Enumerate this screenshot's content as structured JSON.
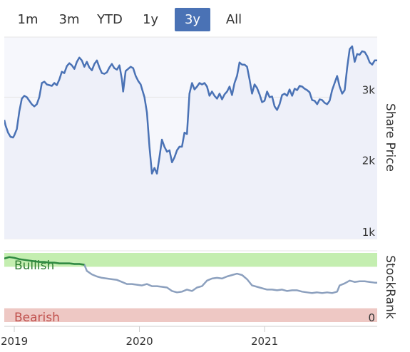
{
  "range_selector": {
    "buttons": [
      {
        "label": "1m",
        "active": false
      },
      {
        "label": "3m",
        "active": false
      },
      {
        "label": "YTD",
        "active": false
      },
      {
        "label": "1y",
        "active": false
      },
      {
        "label": "3y",
        "active": true
      },
      {
        "label": "All",
        "active": false
      }
    ],
    "active_color": "#4a72b5"
  },
  "colors": {
    "price_line": "#4a72b5",
    "rank_line": "#8ca0be",
    "rank_bull_line": "#2e8b3e",
    "bullish_band": "#c4eeb0",
    "bearish_band": "#eec8c4",
    "bullish_text": "#2e7d32",
    "bearish_text": "#c0504d",
    "plot_bg": "#f6f7fc",
    "gridline": "#e6e6e6"
  },
  "chart_data": [
    {
      "type": "line",
      "ylabel": "Share Price",
      "ylim": [
        1000,
        3850
      ],
      "y_ticks": [
        {
          "value": 1000,
          "label": "1k"
        },
        {
          "value": 2000,
          "label": "2k"
        },
        {
          "value": 3000,
          "label": "3k"
        }
      ],
      "x_ticks": [
        "2019",
        "2020",
        "2021"
      ],
      "grid": true,
      "series": [
        {
          "values": [
            [
              2018.92,
              2680
            ],
            [
              2018.93,
              2600
            ],
            [
              2018.95,
              2500
            ],
            [
              2018.97,
              2440
            ],
            [
              2018.99,
              2430
            ],
            [
              2019.0,
              2460
            ],
            [
              2019.02,
              2550
            ],
            [
              2019.04,
              2800
            ],
            [
              2019.06,
              2980
            ],
            [
              2019.08,
              3020
            ],
            [
              2019.1,
              3000
            ],
            [
              2019.12,
              2950
            ],
            [
              2019.14,
              2900
            ],
            [
              2019.16,
              2870
            ],
            [
              2019.18,
              2900
            ],
            [
              2019.2,
              3000
            ],
            [
              2019.22,
              3200
            ],
            [
              2019.24,
              3220
            ],
            [
              2019.26,
              3180
            ],
            [
              2019.28,
              3170
            ],
            [
              2019.3,
              3160
            ],
            [
              2019.32,
              3200
            ],
            [
              2019.34,
              3170
            ],
            [
              2019.36,
              3250
            ],
            [
              2019.38,
              3360
            ],
            [
              2019.4,
              3340
            ],
            [
              2019.42,
              3440
            ],
            [
              2019.44,
              3480
            ],
            [
              2019.46,
              3450
            ],
            [
              2019.48,
              3400
            ],
            [
              2019.5,
              3500
            ],
            [
              2019.52,
              3560
            ],
            [
              2019.54,
              3520
            ],
            [
              2019.56,
              3430
            ],
            [
              2019.58,
              3500
            ],
            [
              2019.6,
              3420
            ],
            [
              2019.62,
              3380
            ],
            [
              2019.64,
              3470
            ],
            [
              2019.66,
              3520
            ],
            [
              2019.68,
              3420
            ],
            [
              2019.7,
              3340
            ],
            [
              2019.72,
              3330
            ],
            [
              2019.74,
              3350
            ],
            [
              2019.76,
              3420
            ],
            [
              2019.78,
              3470
            ],
            [
              2019.8,
              3410
            ],
            [
              2019.82,
              3390
            ],
            [
              2019.84,
              3450
            ],
            [
              2019.86,
              3250
            ],
            [
              2019.87,
              3080
            ],
            [
              2019.89,
              3370
            ],
            [
              2019.91,
              3400
            ],
            [
              2019.93,
              3430
            ],
            [
              2019.95,
              3410
            ],
            [
              2019.97,
              3300
            ],
            [
              2019.99,
              3230
            ],
            [
              2020.01,
              3180
            ],
            [
              2020.04,
              3000
            ],
            [
              2020.06,
              2780
            ],
            [
              2020.08,
              2300
            ],
            [
              2020.1,
              1920
            ],
            [
              2020.12,
              2000
            ],
            [
              2020.14,
              1920
            ],
            [
              2020.16,
              2150
            ],
            [
              2020.18,
              2400
            ],
            [
              2020.2,
              2300
            ],
            [
              2020.22,
              2230
            ],
            [
              2020.24,
              2250
            ],
            [
              2020.26,
              2080
            ],
            [
              2020.28,
              2150
            ],
            [
              2020.3,
              2250
            ],
            [
              2020.32,
              2300
            ],
            [
              2020.34,
              2300
            ],
            [
              2020.36,
              2500
            ],
            [
              2020.38,
              2480
            ],
            [
              2020.4,
              3050
            ],
            [
              2020.42,
              3200
            ],
            [
              2020.44,
              3110
            ],
            [
              2020.46,
              3150
            ],
            [
              2020.48,
              3200
            ],
            [
              2020.5,
              3180
            ],
            [
              2020.52,
              3200
            ],
            [
              2020.54,
              3150
            ],
            [
              2020.56,
              3020
            ],
            [
              2020.58,
              3080
            ],
            [
              2020.6,
              3020
            ],
            [
              2020.62,
              2980
            ],
            [
              2020.64,
              3050
            ],
            [
              2020.66,
              2970
            ],
            [
              2020.68,
              3040
            ],
            [
              2020.7,
              3080
            ],
            [
              2020.72,
              3150
            ],
            [
              2020.74,
              3030
            ],
            [
              2020.76,
              3200
            ],
            [
              2020.78,
              3300
            ],
            [
              2020.8,
              3490
            ],
            [
              2020.82,
              3460
            ],
            [
              2020.84,
              3460
            ],
            [
              2020.86,
              3430
            ],
            [
              2020.88,
              3250
            ],
            [
              2020.9,
              3050
            ],
            [
              2020.92,
              3180
            ],
            [
              2020.94,
              3130
            ],
            [
              2020.96,
              3040
            ],
            [
              2020.98,
              2930
            ],
            [
              2021.0,
              2950
            ],
            [
              2021.02,
              3080
            ],
            [
              2021.04,
              3000
            ],
            [
              2021.06,
              3010
            ],
            [
              2021.08,
              2870
            ],
            [
              2021.1,
              2820
            ],
            [
              2021.12,
              2900
            ],
            [
              2021.14,
              3030
            ],
            [
              2021.16,
              3050
            ],
            [
              2021.18,
              3020
            ],
            [
              2021.2,
              3110
            ],
            [
              2021.22,
              3020
            ],
            [
              2021.24,
              3120
            ],
            [
              2021.26,
              3100
            ],
            [
              2021.28,
              3160
            ],
            [
              2021.3,
              3150
            ],
            [
              2021.32,
              3120
            ],
            [
              2021.34,
              3100
            ],
            [
              2021.36,
              3070
            ],
            [
              2021.38,
              2960
            ],
            [
              2021.4,
              2950
            ],
            [
              2021.42,
              2900
            ],
            [
              2021.44,
              2970
            ],
            [
              2021.46,
              2960
            ],
            [
              2021.48,
              2920
            ],
            [
              2021.5,
              2900
            ],
            [
              2021.52,
              2950
            ],
            [
              2021.54,
              3100
            ],
            [
              2021.56,
              3200
            ],
            [
              2021.58,
              3300
            ],
            [
              2021.6,
              3150
            ],
            [
              2021.62,
              3050
            ],
            [
              2021.64,
              3100
            ],
            [
              2021.66,
              3420
            ],
            [
              2021.68,
              3680
            ],
            [
              2021.7,
              3720
            ],
            [
              2021.72,
              3500
            ],
            [
              2021.74,
              3610
            ],
            [
              2021.76,
              3600
            ],
            [
              2021.78,
              3650
            ],
            [
              2021.8,
              3640
            ],
            [
              2021.82,
              3580
            ],
            [
              2021.84,
              3490
            ],
            [
              2021.86,
              3460
            ],
            [
              2021.88,
              3520
            ],
            [
              2021.9,
              3520
            ]
          ]
        }
      ]
    },
    {
      "type": "line",
      "ylabel": "StockRank",
      "ylim": [
        0,
        100
      ],
      "y_ticks": [
        {
          "value": 0,
          "label": "0"
        }
      ],
      "bands": [
        {
          "label": "Bullish",
          "from": 80,
          "to": 100
        },
        {
          "label": "Bearish",
          "from": 0,
          "to": 20
        }
      ],
      "series": [
        {
          "values": [
            [
              2018.92,
              92
            ],
            [
              2018.96,
              94
            ],
            [
              2019.0,
              93
            ],
            [
              2019.04,
              91
            ],
            [
              2019.08,
              90
            ],
            [
              2019.12,
              89
            ],
            [
              2019.16,
              88
            ],
            [
              2019.2,
              87
            ],
            [
              2019.24,
              87
            ],
            [
              2019.28,
              86
            ],
            [
              2019.32,
              86
            ],
            [
              2019.36,
              85
            ],
            [
              2019.4,
              85
            ],
            [
              2019.44,
              85
            ],
            [
              2019.48,
              84
            ],
            [
              2019.52,
              84
            ],
            [
              2019.56,
              83
            ],
            [
              2019.58,
              74
            ],
            [
              2019.62,
              69
            ],
            [
              2019.66,
              66
            ],
            [
              2019.7,
              64
            ],
            [
              2019.74,
              63
            ],
            [
              2019.78,
              62
            ],
            [
              2019.82,
              61
            ],
            [
              2019.86,
              58
            ],
            [
              2019.9,
              55
            ],
            [
              2019.94,
              55
            ],
            [
              2019.98,
              54
            ],
            [
              2020.02,
              53
            ],
            [
              2020.06,
              55
            ],
            [
              2020.1,
              52
            ],
            [
              2020.14,
              52
            ],
            [
              2020.18,
              51
            ],
            [
              2020.22,
              50
            ],
            [
              2020.26,
              45
            ],
            [
              2020.3,
              43
            ],
            [
              2020.34,
              44
            ],
            [
              2020.38,
              47
            ],
            [
              2020.42,
              45
            ],
            [
              2020.46,
              50
            ],
            [
              2020.5,
              52
            ],
            [
              2020.54,
              60
            ],
            [
              2020.58,
              63
            ],
            [
              2020.62,
              64
            ],
            [
              2020.66,
              63
            ],
            [
              2020.7,
              66
            ],
            [
              2020.74,
              68
            ],
            [
              2020.78,
              70
            ],
            [
              2020.82,
              68
            ],
            [
              2020.86,
              62
            ],
            [
              2020.9,
              53
            ],
            [
              2020.94,
              51
            ],
            [
              2020.98,
              49
            ],
            [
              2021.02,
              47
            ],
            [
              2021.06,
              47
            ],
            [
              2021.1,
              46
            ],
            [
              2021.14,
              47
            ],
            [
              2021.18,
              45
            ],
            [
              2021.22,
              46
            ],
            [
              2021.26,
              46
            ],
            [
              2021.3,
              44
            ],
            [
              2021.34,
              43
            ],
            [
              2021.38,
              42
            ],
            [
              2021.42,
              43
            ],
            [
              2021.46,
              42
            ],
            [
              2021.5,
              43
            ],
            [
              2021.54,
              42
            ],
            [
              2021.58,
              44
            ],
            [
              2021.6,
              53
            ],
            [
              2021.64,
              56
            ],
            [
              2021.68,
              60
            ],
            [
              2021.72,
              58
            ],
            [
              2021.76,
              59
            ],
            [
              2021.8,
              59
            ],
            [
              2021.84,
              58
            ],
            [
              2021.88,
              57
            ],
            [
              2021.9,
              57
            ]
          ]
        }
      ]
    }
  ]
}
